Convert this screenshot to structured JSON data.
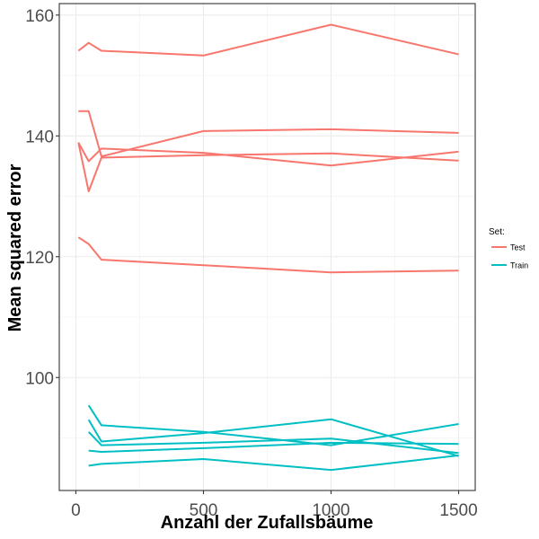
{
  "chart_data": {
    "type": "line",
    "title": "",
    "xlabel": "Anzahl der Zufallsbäume",
    "ylabel": "Mean squared error",
    "xlim": [
      -65,
      1565
    ],
    "ylim": [
      81.3,
      161.9
    ],
    "xticks": [
      0,
      500,
      1000,
      1500
    ],
    "yticks": [
      100,
      120,
      140,
      160
    ],
    "xtick_labels": [
      "0",
      "500",
      "1000",
      "1500"
    ],
    "ytick_labels": [
      "100",
      "120",
      "140",
      "160"
    ],
    "grid": true,
    "legend": {
      "title": "Set:",
      "position": "right",
      "entries": [
        {
          "label": "Test",
          "color": "#F8766D"
        },
        {
          "label": "Train",
          "color": "#00BFC4"
        }
      ]
    },
    "series": [
      {
        "set": "Test",
        "color": "#F8766D",
        "x": [
          10,
          50,
          100,
          500,
          1000,
          1500
        ],
        "y": [
          154.1,
          155.4,
          154.1,
          153.3,
          158.4,
          153.5
        ]
      },
      {
        "set": "Test",
        "color": "#F8766D",
        "x": [
          10,
          50,
          100,
          500,
          1000,
          1500
        ],
        "y": [
          144.1,
          144.1,
          136.6,
          140.8,
          141.1,
          140.5
        ]
      },
      {
        "set": "Test",
        "color": "#F8766D",
        "x": [
          10,
          50,
          100,
          500,
          1000,
          1500
        ],
        "y": [
          138.9,
          135.8,
          137.9,
          137.2,
          135.1,
          137.4
        ]
      },
      {
        "set": "Test",
        "color": "#F8766D",
        "x": [
          10,
          50,
          100,
          500,
          1000,
          1500
        ],
        "y": [
          138.9,
          130.8,
          136.4,
          136.8,
          137.1,
          135.9
        ]
      },
      {
        "set": "Test",
        "color": "#F8766D",
        "x": [
          10,
          50,
          100,
          500,
          1000,
          1500
        ],
        "y": [
          123.2,
          122.1,
          119.5,
          118.6,
          117.4,
          117.7
        ]
      },
      {
        "set": "Train",
        "color": "#00BFC4",
        "x": [
          50,
          100,
          500,
          1000,
          1500
        ],
        "y": [
          95.4,
          92.1,
          91.0,
          88.8,
          92.3
        ]
      },
      {
        "set": "Train",
        "color": "#00BFC4",
        "x": [
          50,
          100,
          500,
          1000,
          1500
        ],
        "y": [
          93.0,
          89.4,
          90.8,
          93.1,
          87.0
        ]
      },
      {
        "set": "Train",
        "color": "#00BFC4",
        "x": [
          50,
          100,
          500,
          1000,
          1500
        ],
        "y": [
          91.0,
          88.8,
          89.2,
          89.9,
          87.5
        ]
      },
      {
        "set": "Train",
        "color": "#00BFC4",
        "x": [
          50,
          100,
          500,
          1000,
          1500
        ],
        "y": [
          87.9,
          87.7,
          88.3,
          89.2,
          89.0
        ]
      },
      {
        "set": "Train",
        "color": "#00BFC4",
        "x": [
          50,
          100,
          500,
          1000,
          1500
        ],
        "y": [
          85.4,
          85.7,
          86.5,
          84.7,
          87.1
        ]
      }
    ]
  }
}
